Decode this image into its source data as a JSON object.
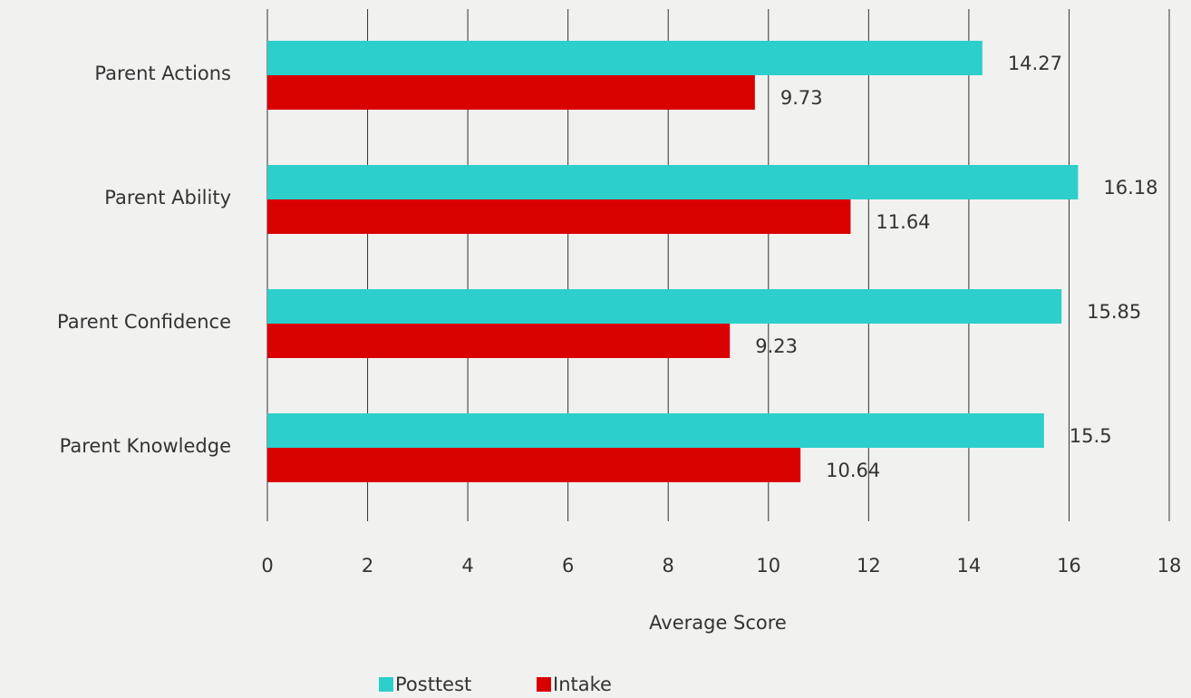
{
  "chart_data": {
    "type": "bar",
    "orientation": "horizontal",
    "xlabel": "Average Score",
    "categories": [
      "Parent Actions",
      "Parent Ability",
      "Parent Confidence",
      "Parent Knowledge"
    ],
    "series": [
      {
        "name": "Posttest",
        "color": "#2ccfcb",
        "values": [
          14.27,
          16.18,
          15.85,
          15.5
        ]
      },
      {
        "name": "Intake",
        "color": "#d90000",
        "values": [
          9.73,
          11.64,
          9.23,
          10.64
        ]
      }
    ],
    "xlim": [
      0,
      18
    ],
    "xticks": [
      0,
      2,
      4,
      6,
      8,
      10,
      12,
      14,
      16,
      18
    ],
    "grid": true,
    "legend": "bottom"
  }
}
